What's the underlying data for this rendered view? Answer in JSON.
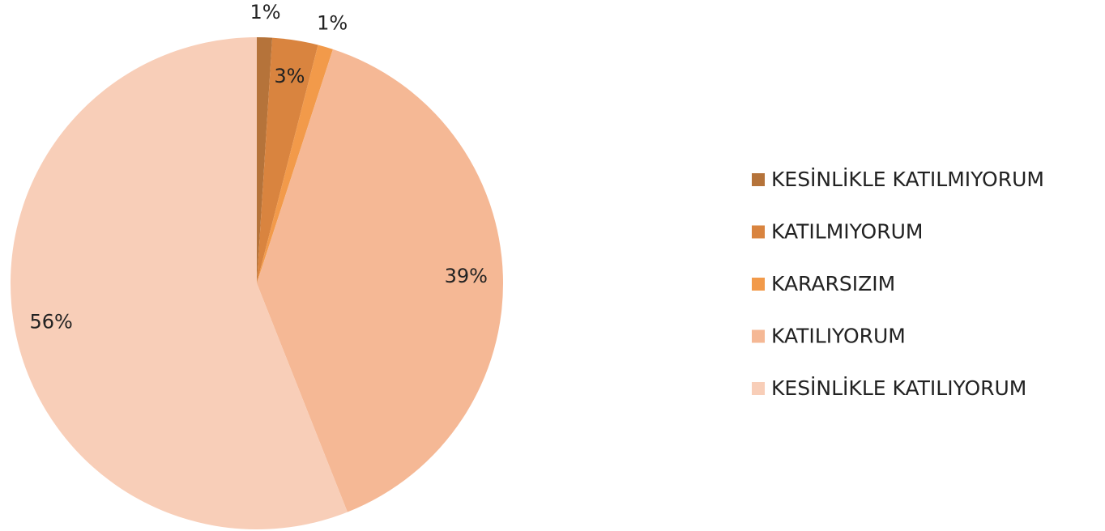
{
  "chart_data": {
    "type": "pie",
    "categories": [
      "KESİNLİKLE KATILMIYORUM",
      "KATILMIYORUM",
      "KARARSIZIM",
      "KATILIYORUM",
      "KESİNLİKLE KATILIYORUM"
    ],
    "values": [
      1,
      3,
      1,
      39,
      56
    ],
    "value_labels": [
      "1%",
      "3%",
      "1%",
      "39%",
      "56%"
    ],
    "colors": [
      "#b5733a",
      "#d9843f",
      "#f29a4a",
      "#f5b895",
      "#f8ceb8"
    ],
    "legend": "right"
  }
}
